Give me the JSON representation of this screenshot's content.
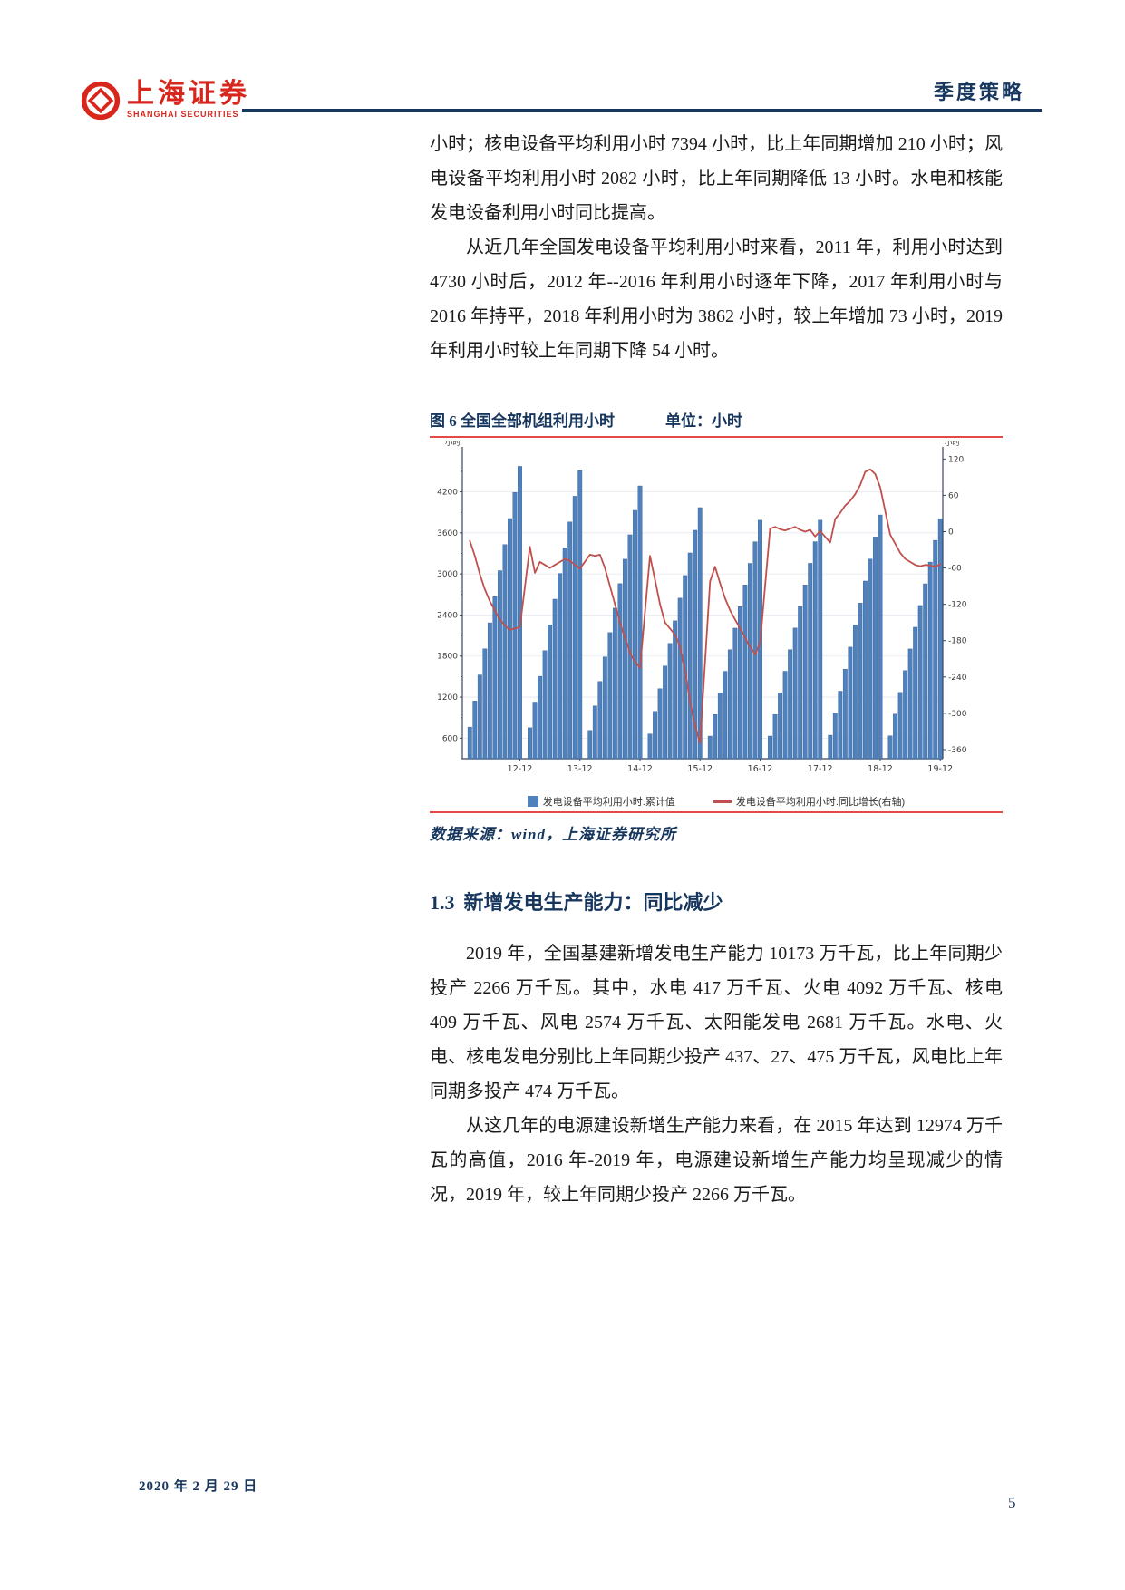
{
  "header": {
    "logo_cn": "上海证券",
    "logo_en": "SHANGHAI SECURITIES",
    "doc_type": "季度策略"
  },
  "paragraphs": [
    "小时；核电设备平均利用小时 7394 小时，比上年同期增加 210 小时；风电设备平均利用小时 2082 小时，比上年同期降低 13 小时。水电和核能发电设备利用小时同比提高。",
    "从近几年全国发电设备平均利用小时来看，2011 年，利用小时达到 4730 小时后，2012 年--2016 年利用小时逐年下降，2017 年利用小时与 2016 年持平，2018 年利用小时为 3862 小时，较上年增加 73 小时，2019 年利用小时较上年同期下降 54 小时。",
    "2019 年，全国基建新增发电生产能力 10173 万千瓦，比上年同期少投产 2266 万千瓦。其中，水电 417 万千瓦、火电 4092 万千瓦、核电 409 万千瓦、风电 2574 万千瓦、太阳能发电 2681 万千瓦。水电、火电、核电发电分别比上年同期少投产 437、27、475 万千瓦，风电比上年同期多投产 474 万千瓦。",
    "从这几年的电源建设新增生产能力来看，在 2015 年达到 12974 万千瓦的高值，2016 年-2019 年，电源建设新增生产能力均呈现减少的情况，2019 年，较上年同期少投产 2266 万千瓦。"
  ],
  "figure": {
    "caption": "图 6 全国全部机组利用小时",
    "unit": "单位：小时",
    "source": "数据来源：wind，上海证券研究所"
  },
  "section": {
    "number": "1.3",
    "title": "新增发电生产能力：同比减少"
  },
  "footer": {
    "date": "2020 年 2 月 29 日",
    "page_number": "5"
  },
  "chart_data": {
    "type": "bar",
    "subtype": "combo-bar-line-dual-axis",
    "title": "全国全部机组利用小时",
    "x_tick_labels": [
      "12-12",
      "13-12",
      "14-12",
      "15-12",
      "16-12",
      "17-12",
      "18-12",
      "19-12"
    ],
    "left_axis": {
      "label": "小时",
      "ticks": [
        600,
        1200,
        1800,
        2400,
        3000,
        3600,
        4200
      ],
      "min": 300,
      "max": 4750
    },
    "right_axis": {
      "label": "小时",
      "ticks": [
        120,
        60,
        0,
        -60,
        -120,
        -180,
        -240,
        -300,
        -360
      ],
      "min": -375,
      "max": 128
    },
    "bar_color": "#4f81bd",
    "line_color": "#c0504d",
    "series": [
      {
        "name": "发电设备平均利用小时:累计值",
        "type": "bar",
        "axis": "left",
        "values_by_year": [
          [
            762,
            1143,
            1524,
            1905,
            2286,
            2667,
            3048,
            3429,
            3810,
            4191,
            4572
          ],
          [
            752,
            1128,
            1504,
            1880,
            2256,
            2631,
            3007,
            3383,
            3759,
            4135,
            4511
          ],
          [
            714,
            1072,
            1429,
            1786,
            2143,
            2500,
            2858,
            3215,
            3572,
            3929,
            4286
          ],
          [
            662,
            992,
            1323,
            1654,
            1985,
            2315,
            2646,
            2977,
            3307,
            3638,
            3969
          ],
          [
            631,
            946,
            1262,
            1577,
            1893,
            2208,
            2523,
            2839,
            3154,
            3470,
            3785
          ],
          [
            631,
            947,
            1262,
            1578,
            1893,
            2209,
            2524,
            2840,
            3155,
            3471,
            3786
          ],
          [
            644,
            966,
            1287,
            1609,
            1931,
            2253,
            2574,
            2896,
            3218,
            3540,
            3862
          ],
          [
            635,
            952,
            1269,
            1587,
            1904,
            2221,
            2539,
            2856,
            3173,
            3491,
            3808
          ]
        ]
      },
      {
        "name": "发电设备平均利用小时:同比增长(右轴)",
        "type": "line",
        "axis": "right",
        "values_by_year": [
          [
            -15,
            -40,
            -70,
            -95,
            -115,
            -130,
            -145,
            -155,
            -162,
            -160,
            -158
          ],
          [
            -25,
            -68,
            -50,
            -55,
            -60,
            -55,
            -50,
            -45,
            -48,
            -55,
            -61
          ],
          [
            -38,
            -40,
            -38,
            -60,
            -90,
            -120,
            -150,
            -175,
            -200,
            -215,
            -225
          ],
          [
            -40,
            -80,
            -120,
            -150,
            -160,
            -170,
            -190,
            -230,
            -280,
            -320,
            -349
          ],
          [
            -82,
            -58,
            -85,
            -110,
            -130,
            -145,
            -160,
            -175,
            -190,
            -203,
            -184
          ],
          [
            5,
            8,
            4,
            2,
            5,
            8,
            3,
            0,
            3,
            -8,
            1
          ],
          [
            -18,
            21,
            31,
            43,
            51,
            62,
            77,
            99,
            103,
            95,
            73
          ],
          [
            -5,
            -20,
            -35,
            -45,
            -50,
            -55,
            -57,
            -55,
            -56,
            -58,
            -54
          ]
        ]
      }
    ]
  }
}
